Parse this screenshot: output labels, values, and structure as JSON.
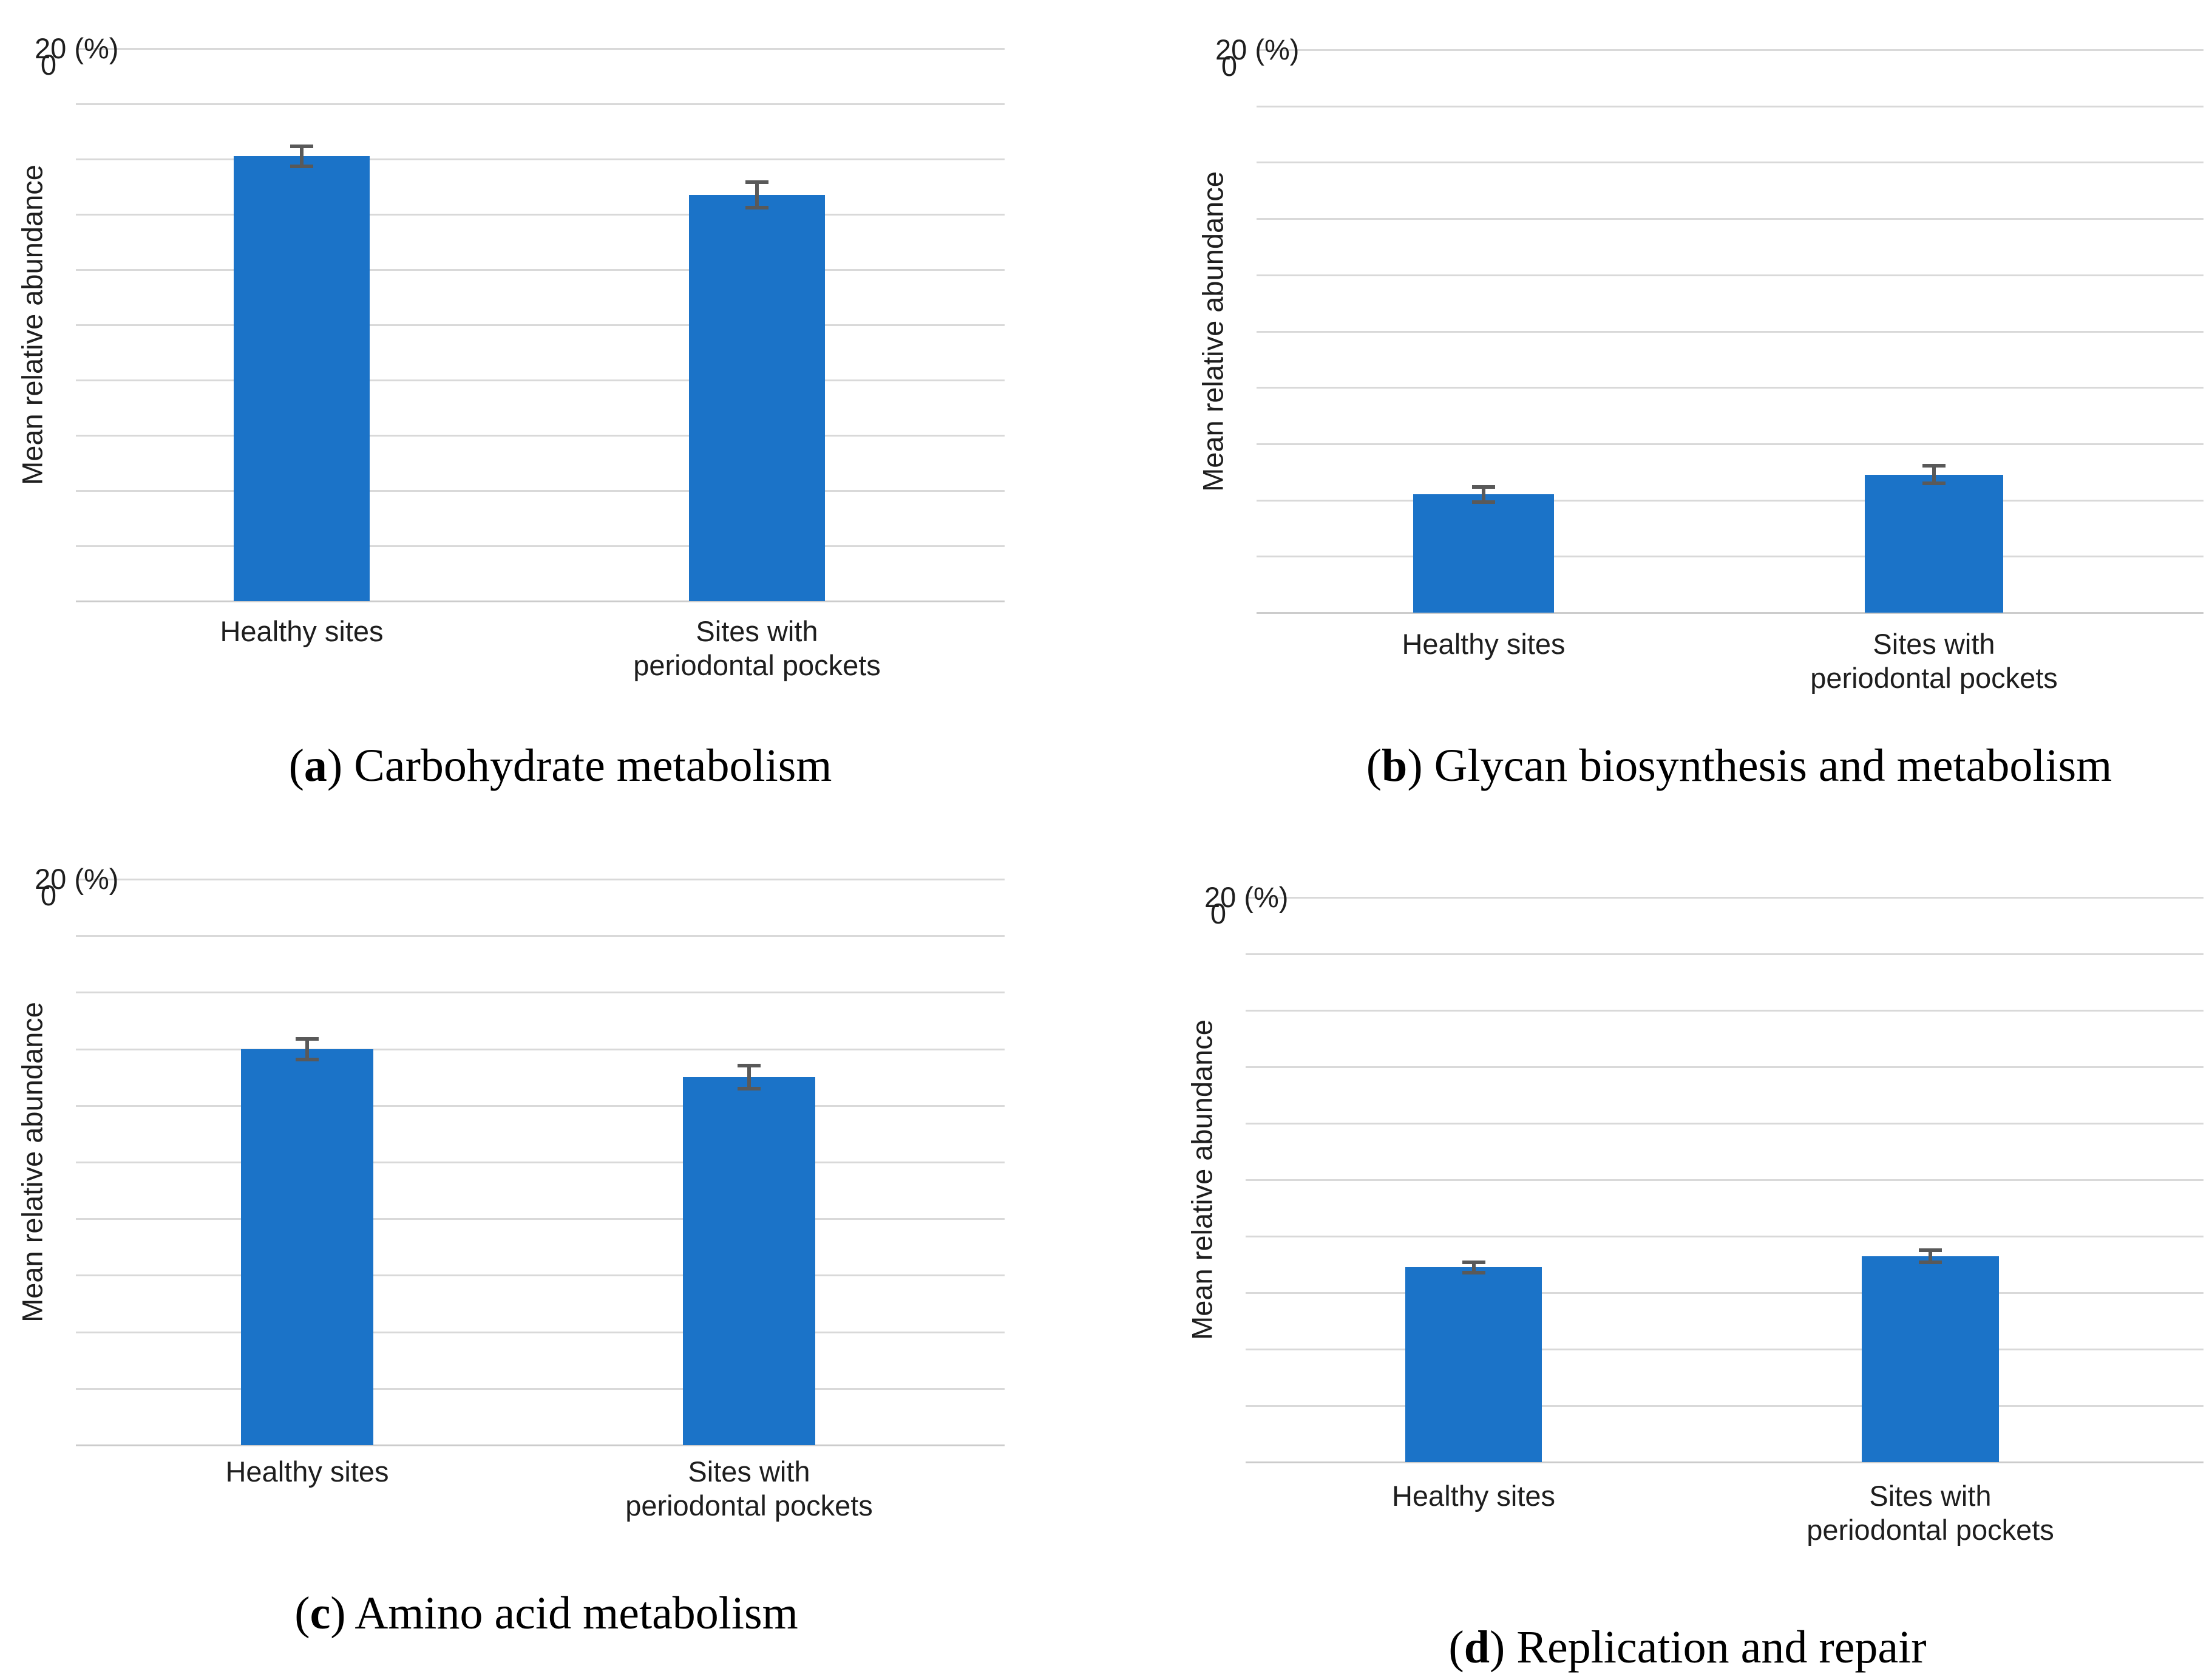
{
  "figure": {
    "bar_color": "#1b73c8",
    "grid_color": "#d9d9d9",
    "error_bar_color": "#595959",
    "label_color": "#1e1e1e",
    "caption_color": "#000000",
    "background": "#ffffff"
  },
  "chart_data": [
    {
      "id": "a",
      "type": "bar",
      "title": "(a) Carbohydrate metabolism",
      "caption": {
        "letter": "a",
        "text": ") Carbohydrate metabolism",
        "open_paren": "("
      },
      "categories": [
        "Healthy sites",
        "Sites with\nperiodontal pockets"
      ],
      "values": [
        16.1,
        14.7
      ],
      "errors": [
        0.3,
        0.4
      ],
      "ylabel": "Mean relative abundance",
      "xlabel": "",
      "ylim": [
        0,
        20
      ],
      "grid_step": 2,
      "legend": "none",
      "y_axis": {
        "top_tick_label": "20",
        "unit_label": "(%)",
        "zero_label": "0"
      }
    },
    {
      "id": "b",
      "type": "bar",
      "title": "(b) Glycan biosynthesis and metabolism",
      "caption": {
        "letter": "b",
        "text": ") Glycan biosynthesis and metabolism",
        "open_paren": "("
      },
      "categories": [
        "Healthy sites",
        "Sites with\nperiodontal pockets"
      ],
      "values": [
        4.2,
        4.9
      ],
      "errors": [
        0.2,
        0.25
      ],
      "ylabel": "Mean relative abundance",
      "xlabel": "",
      "ylim": [
        0,
        20
      ],
      "grid_step": 2,
      "legend": "none",
      "y_axis": {
        "top_tick_label": "20",
        "unit_label": "(%)",
        "zero_label": "0"
      }
    },
    {
      "id": "c",
      "type": "bar",
      "title": "(c) Amino acid metabolism",
      "caption": {
        "letter": "c",
        "text": ") Amino acid metabolism",
        "open_paren": "("
      },
      "categories": [
        "Healthy sites",
        "Sites with\nperiodontal pockets"
      ],
      "values": [
        14.0,
        13.0
      ],
      "errors": [
        0.3,
        0.35
      ],
      "ylabel": "Mean relative abundance",
      "xlabel": "",
      "ylim": [
        0,
        20
      ],
      "grid_step": 2,
      "legend": "none",
      "y_axis": {
        "top_tick_label": "20",
        "unit_label": "(%)",
        "zero_label": "0"
      }
    },
    {
      "id": "d",
      "type": "bar",
      "title": "(d) Replication and repair",
      "caption": {
        "letter": "d",
        "text": ") Replication and repair",
        "open_paren": "("
      },
      "categories": [
        "Healthy sites",
        "Sites with\nperiodontal pockets"
      ],
      "values": [
        6.9,
        7.3
      ],
      "errors": [
        0.12,
        0.15
      ],
      "ylabel": "Mean relative abundance",
      "xlabel": "",
      "ylim": [
        0,
        20
      ],
      "grid_step": 2,
      "legend": "none",
      "y_axis": {
        "top_tick_label": "20",
        "unit_label": "(%)",
        "zero_label": "0"
      }
    }
  ]
}
